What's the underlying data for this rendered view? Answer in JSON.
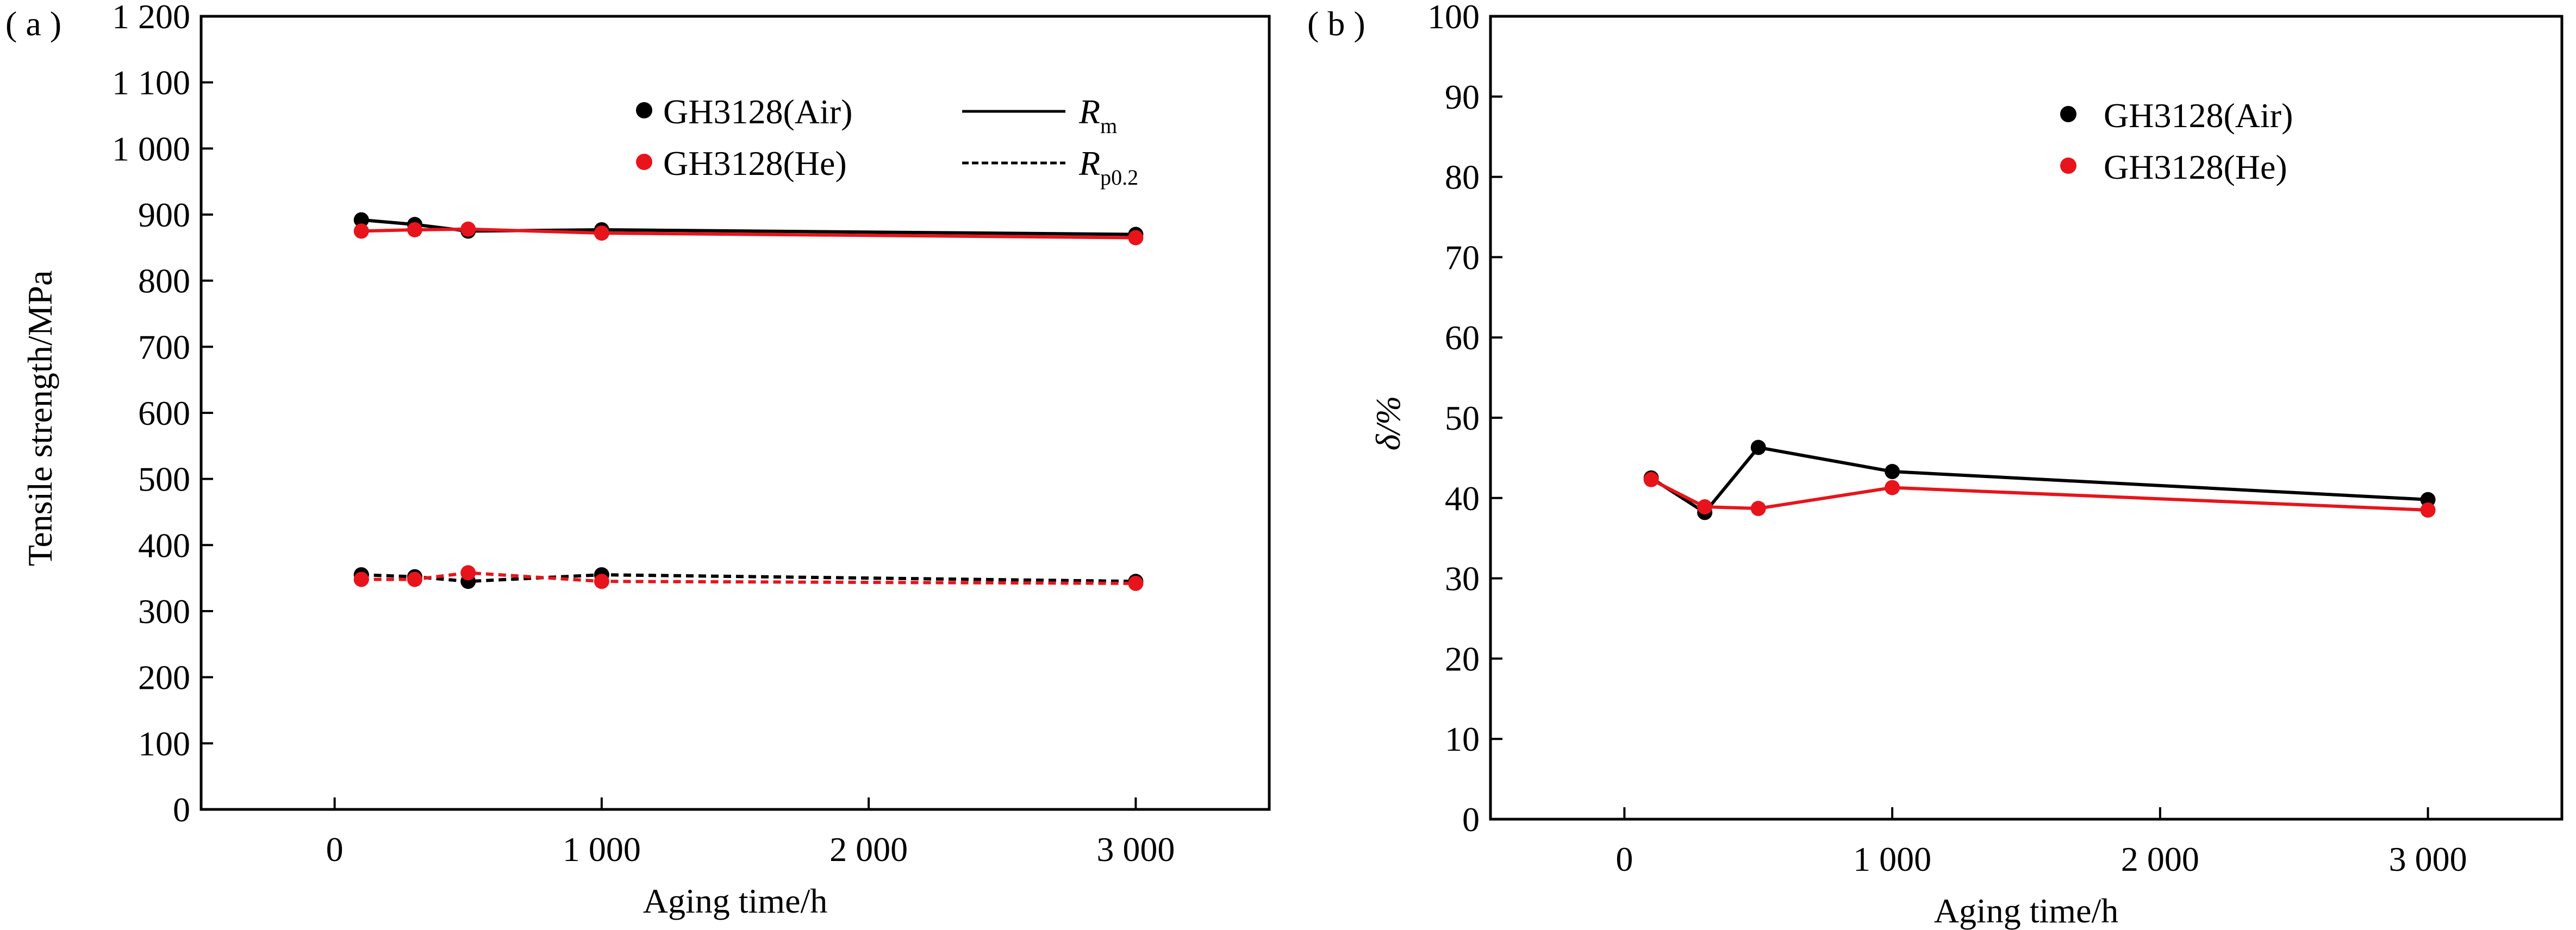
{
  "chart_data": [
    {
      "panel": "( a )",
      "type": "line",
      "title": "",
      "xlabel": "Aging time/h",
      "ylabel": "Tensile strength/MPa",
      "xlim": [
        -500,
        3500
      ],
      "ylim": [
        0,
        1200
      ],
      "xticks": [
        0,
        1000,
        2000,
        3000
      ],
      "xtick_labels": [
        "0",
        "1 000",
        "2 000",
        "3 000"
      ],
      "yticks": [
        0,
        100,
        200,
        300,
        400,
        500,
        600,
        700,
        800,
        900,
        1000,
        1100,
        1200
      ],
      "ytick_labels": [
        "0",
        "100",
        "200",
        "300",
        "400",
        "500",
        "600",
        "700",
        "800",
        "900",
        "1 000",
        "1 100",
        "1 200"
      ],
      "grid": false,
      "legend_position": "top-right",
      "legend": {
        "markers": [
          {
            "label": "GH3128(Air)",
            "color": "#000000"
          },
          {
            "label": "GH3128(He)",
            "color": "#e8141b"
          }
        ],
        "lines": [
          {
            "symbol": "R",
            "subscript": "m",
            "style": "solid"
          },
          {
            "symbol": "R",
            "subscript": "p0.2",
            "style": "dashed"
          }
        ]
      },
      "series": [
        {
          "name": "GH3128(Air)",
          "property": "Rm",
          "style": "solid",
          "color": "#000000",
          "x": [
            100,
            300,
            500,
            1000,
            3000
          ],
          "y": [
            892,
            885,
            875,
            877,
            870
          ]
        },
        {
          "name": "GH3128(He)",
          "property": "Rm",
          "style": "solid",
          "color": "#e8141b",
          "x": [
            100,
            300,
            500,
            1000,
            3000
          ],
          "y": [
            875,
            877,
            878,
            872,
            865
          ]
        },
        {
          "name": "GH3128(Air)",
          "property": "Rp0.2",
          "style": "dashed",
          "color": "#000000",
          "x": [
            100,
            300,
            500,
            1000,
            3000
          ],
          "y": [
            355,
            352,
            345,
            355,
            345
          ]
        },
        {
          "name": "GH3128(He)",
          "property": "Rp0.2",
          "style": "dashed",
          "color": "#e8141b",
          "x": [
            100,
            300,
            500,
            1000,
            3000
          ],
          "y": [
            348,
            348,
            358,
            345,
            342
          ]
        }
      ]
    },
    {
      "panel": "( b )",
      "type": "line",
      "title": "",
      "xlabel": "Aging time/h",
      "ylabel": "δ/%",
      "xlim": [
        -500,
        3500
      ],
      "ylim": [
        0,
        100
      ],
      "xticks": [
        0,
        1000,
        2000,
        3000
      ],
      "xtick_labels": [
        "0",
        "1 000",
        "2 000",
        "3 000"
      ],
      "yticks": [
        0,
        10,
        20,
        30,
        40,
        50,
        60,
        70,
        80,
        90,
        100
      ],
      "ytick_labels": [
        "0",
        "10",
        "20",
        "30",
        "40",
        "50",
        "60",
        "70",
        "80",
        "90",
        "100"
      ],
      "grid": false,
      "legend_position": "top-right",
      "legend": {
        "markers": [
          {
            "label": "GH3128(Air)",
            "color": "#000000"
          },
          {
            "label": "GH3128(He)",
            "color": "#e8141b"
          }
        ]
      },
      "series": [
        {
          "name": "GH3128(Air)",
          "style": "solid",
          "color": "#000000",
          "x": [
            100,
            300,
            500,
            1000,
            3000
          ],
          "y": [
            42.5,
            38.2,
            46.3,
            43.3,
            39.8
          ]
        },
        {
          "name": "GH3128(He)",
          "style": "solid",
          "color": "#e8141b",
          "x": [
            100,
            300,
            500,
            1000,
            3000
          ],
          "y": [
            42.3,
            38.9,
            38.7,
            41.3,
            38.5
          ]
        }
      ]
    }
  ]
}
